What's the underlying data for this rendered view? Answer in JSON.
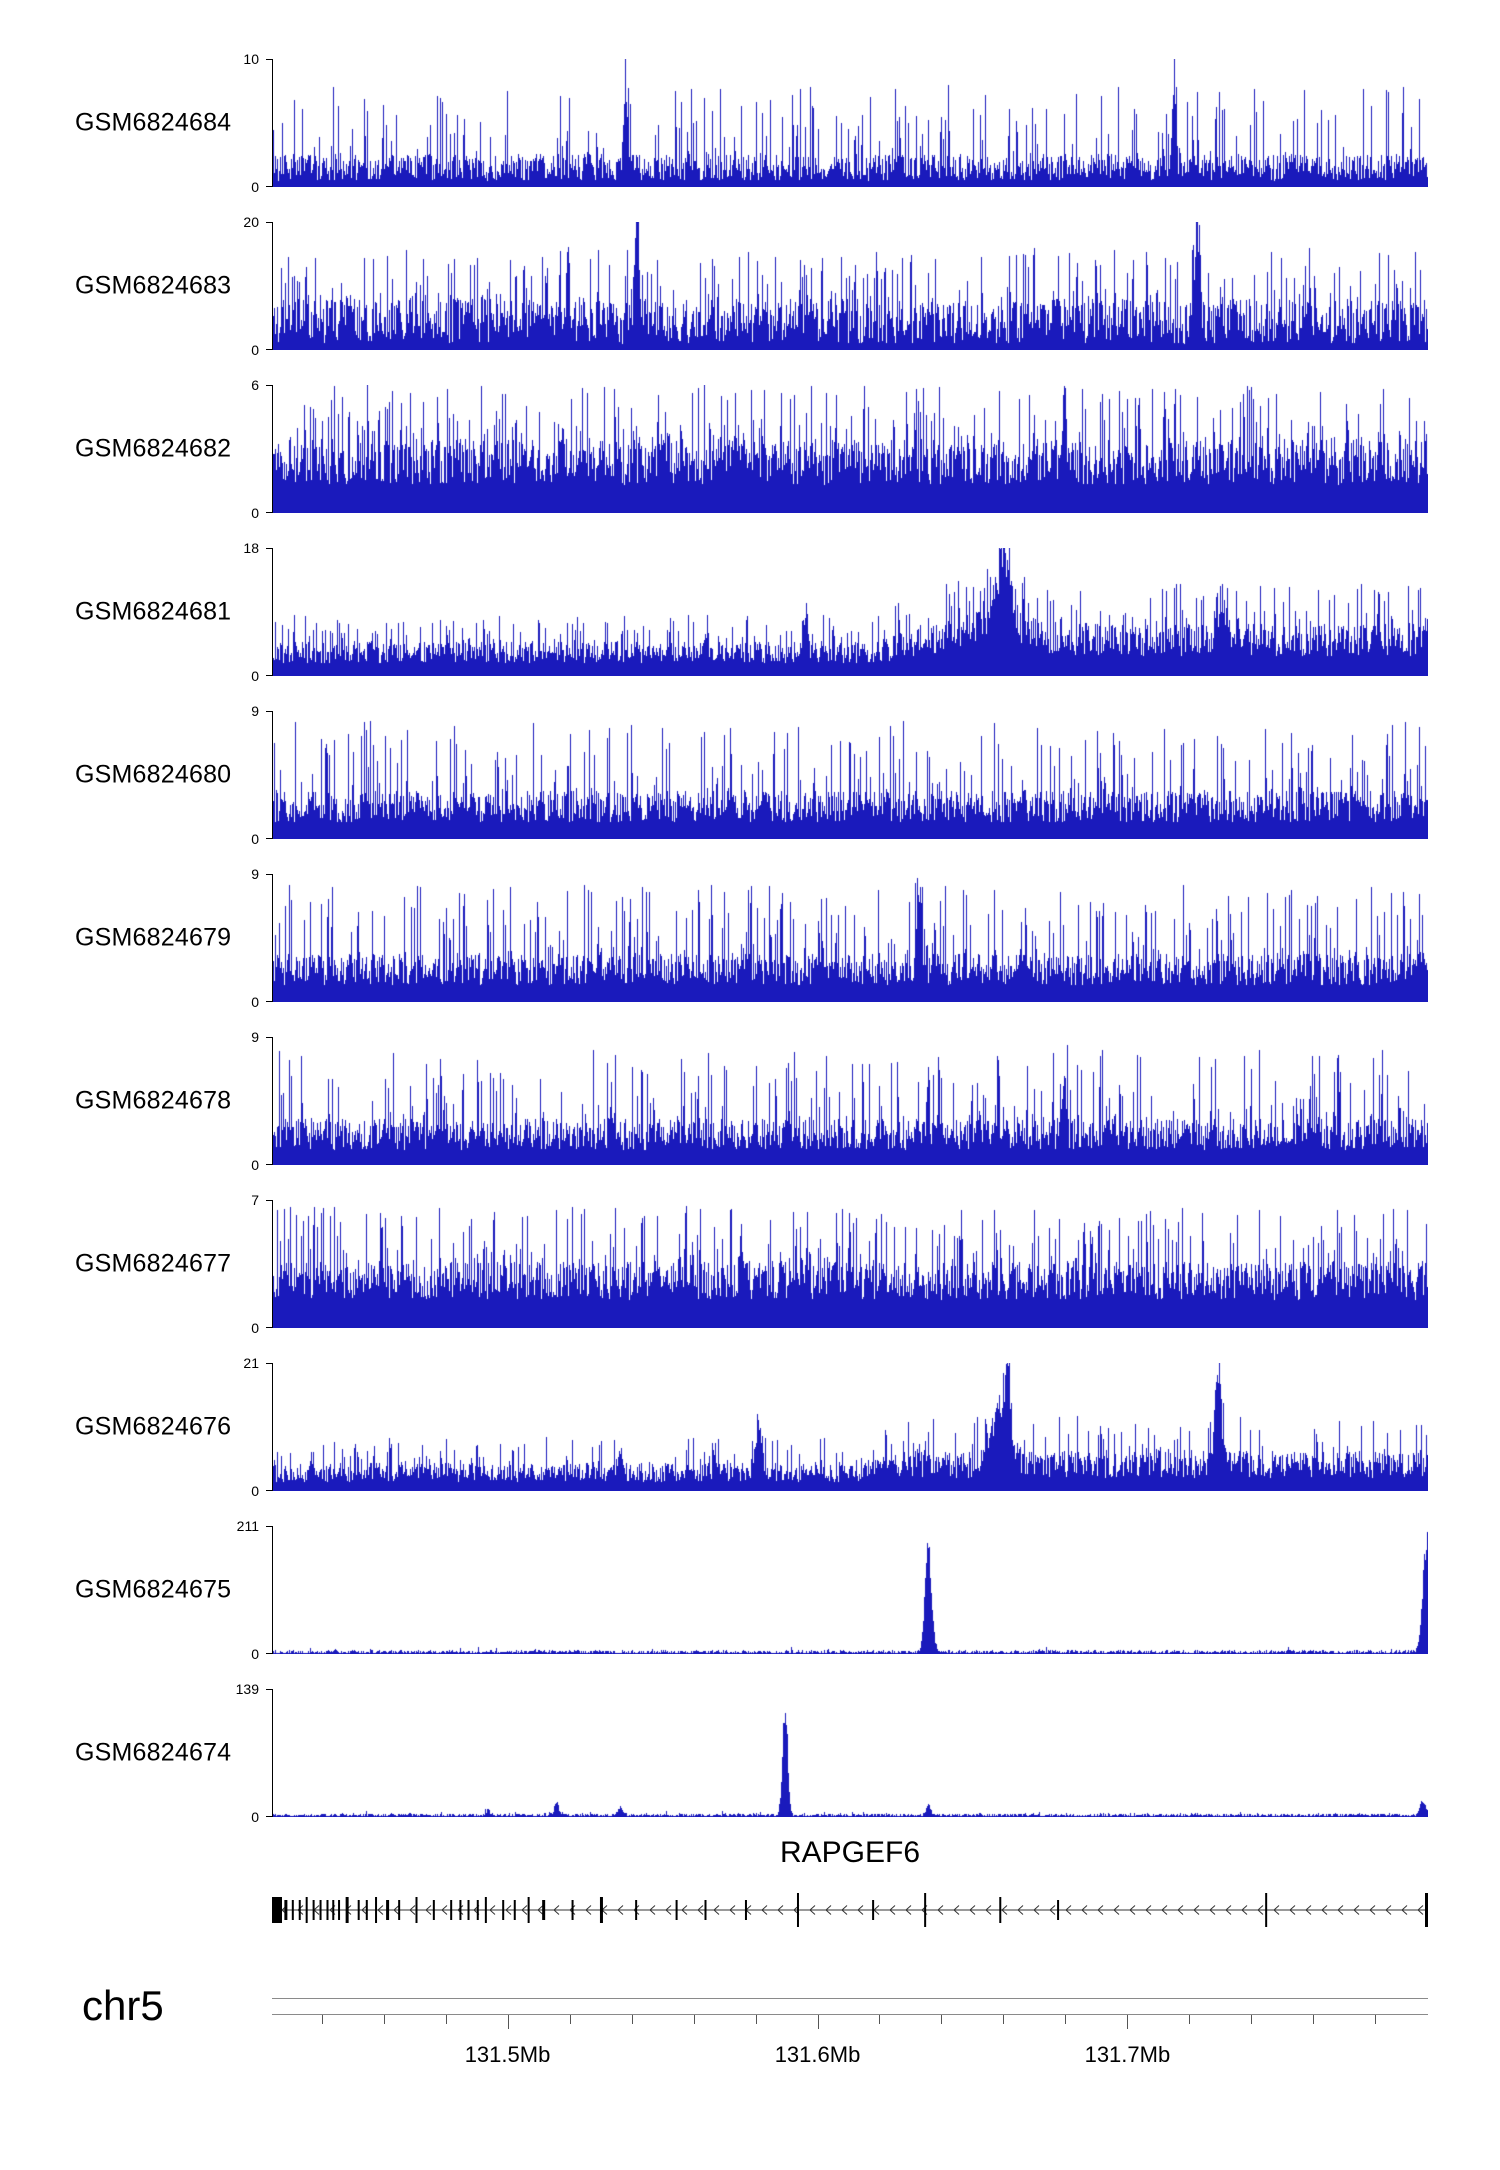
{
  "figure": {
    "background": "#ffffff",
    "signal_color": "#1a1abc",
    "chrom_label": "chr5",
    "gene_label": "RAPGEF6"
  },
  "chart_data": {
    "type": "area",
    "title": "",
    "description": "Genome-browser read-coverage tracks for 11 GEO samples over the RAPGEF6 locus on chr5",
    "region": {
      "chromosome": "chr5",
      "start_mb": 131.424,
      "end_mb": 131.797,
      "unit": "Mb"
    },
    "x_axis": {
      "major_ticks_mb": [
        131.5,
        131.6,
        131.7
      ],
      "major_tick_labels": [
        "131.5Mb",
        "131.6Mb",
        "131.7Mb"
      ],
      "minor_tick_interval_mb": 0.02,
      "grid": false
    },
    "legend": null,
    "tracks": [
      {
        "id": "GSM6824684",
        "ylim": [
          0,
          10
        ],
        "ymax_label": "10",
        "yzero_label": "0",
        "render": {
          "seed": 684,
          "base": [
            0.05,
            0.26
          ],
          "spike_p": 0.22,
          "spike_max": 0.8,
          "envelope": [
            [
              0,
              1
            ],
            [
              1,
              1
            ]
          ],
          "peaks": [
            {
              "c": 0.305,
              "w": 0.0015,
              "a": 0.7
            },
            {
              "c": 0.78,
              "w": 0.0015,
              "a": 0.8
            }
          ]
        }
      },
      {
        "id": "GSM6824683",
        "ylim": [
          0,
          20
        ],
        "ymax_label": "20",
        "yzero_label": "0",
        "render": {
          "seed": 683,
          "base": [
            0.05,
            0.4
          ],
          "spike_p": 0.3,
          "spike_max": 0.8,
          "envelope": [
            [
              0,
              1
            ],
            [
              1,
              1
            ]
          ],
          "peaks": [
            {
              "c": 0.315,
              "w": 0.002,
              "a": 0.8
            },
            {
              "c": 0.8,
              "w": 0.002,
              "a": 0.85
            },
            {
              "c": 0.255,
              "w": 0.0015,
              "a": 0.5
            }
          ]
        }
      },
      {
        "id": "GSM6824682",
        "ylim": [
          0,
          6
        ],
        "ymax_label": "6",
        "yzero_label": "0",
        "render": {
          "seed": 682,
          "base": [
            0.22,
            0.58
          ],
          "spike_p": 0.32,
          "spike_max": 1.0,
          "envelope": [
            [
              0,
              1
            ],
            [
              1,
              1
            ]
          ],
          "peaks": [
            {
              "c": 0.685,
              "w": 0.0015,
              "a": 0.5
            }
          ]
        }
      },
      {
        "id": "GSM6824681",
        "ylim": [
          0,
          18
        ],
        "ymax_label": "18",
        "yzero_label": "0",
        "render": {
          "seed": 681,
          "base": [
            0.1,
            0.27
          ],
          "spike_p": 0.28,
          "spike_max": 0.48,
          "envelope": [
            [
              0,
              1
            ],
            [
              0.52,
              1
            ],
            [
              0.58,
              1.55
            ],
            [
              1,
              1.5
            ]
          ],
          "peaks": [
            {
              "c": 0.632,
              "w": 0.006,
              "a": 0.45
            },
            {
              "c": 0.628,
              "w": 0.02,
              "a": 0.18
            },
            {
              "c": 0.82,
              "w": 0.004,
              "a": 0.32
            },
            {
              "c": 0.46,
              "w": 0.002,
              "a": 0.32
            }
          ]
        }
      },
      {
        "id": "GSM6824680",
        "ylim": [
          0,
          9
        ],
        "ymax_label": "9",
        "yzero_label": "0",
        "render": {
          "seed": 680,
          "base": [
            0.13,
            0.38
          ],
          "spike_p": 0.27,
          "spike_max": 0.92,
          "envelope": [
            [
              0,
              1
            ],
            [
              1,
              1
            ]
          ],
          "peaks": []
        }
      },
      {
        "id": "GSM6824679",
        "ylim": [
          0,
          9
        ],
        "ymax_label": "9",
        "yzero_label": "0",
        "render": {
          "seed": 679,
          "base": [
            0.13,
            0.38
          ],
          "spike_p": 0.26,
          "spike_max": 0.92,
          "envelope": [
            [
              0,
              1
            ],
            [
              1,
              1
            ]
          ],
          "peaks": [
            {
              "c": 0.56,
              "w": 0.0015,
              "a": 0.55
            }
          ]
        }
      },
      {
        "id": "GSM6824678",
        "ylim": [
          0,
          9
        ],
        "ymax_label": "9",
        "yzero_label": "0",
        "render": {
          "seed": 678,
          "base": [
            0.12,
            0.36
          ],
          "spike_p": 0.26,
          "spike_max": 0.9,
          "envelope": [
            [
              0,
              1
            ],
            [
              1,
              1
            ]
          ],
          "peaks": [
            {
              "c": 0.685,
              "w": 0.0012,
              "a": 0.6
            }
          ]
        }
      },
      {
        "id": "GSM6824677",
        "ylim": [
          0,
          7
        ],
        "ymax_label": "7",
        "yzero_label": "0",
        "render": {
          "seed": 677,
          "base": [
            0.22,
            0.52
          ],
          "spike_p": 0.3,
          "spike_max": 0.95,
          "envelope": [
            [
              0,
              1
            ],
            [
              1,
              1
            ]
          ],
          "peaks": [
            {
              "c": 0.405,
              "w": 0.0012,
              "a": 0.55
            }
          ]
        }
      },
      {
        "id": "GSM6824676",
        "ylim": [
          0,
          21
        ],
        "ymax_label": "21",
        "yzero_label": "0",
        "render": {
          "seed": 676,
          "base": [
            0.07,
            0.22
          ],
          "spike_p": 0.22,
          "spike_max": 0.42,
          "envelope": [
            [
              0,
              1
            ],
            [
              0.5,
              1
            ],
            [
              0.56,
              1.45
            ],
            [
              1,
              1.4
            ]
          ],
          "peaks": [
            {
              "c": 0.63,
              "w": 0.008,
              "a": 0.5
            },
            {
              "c": 0.636,
              "w": 0.002,
              "a": 0.6
            },
            {
              "c": 0.818,
              "w": 0.0025,
              "a": 0.85
            },
            {
              "c": 0.42,
              "w": 0.003,
              "a": 0.3
            },
            {
              "c": 0.3,
              "w": 0.002,
              "a": 0.22
            }
          ]
        }
      },
      {
        "id": "GSM6824675",
        "ylim": [
          0,
          211
        ],
        "ymax_label": "211",
        "yzero_label": "0",
        "render": {
          "seed": 675,
          "base": [
            0.004,
            0.03
          ],
          "spike_p": 0.03,
          "spike_max": 0.06,
          "envelope": [
            [
              0,
              1
            ],
            [
              1,
              1
            ]
          ],
          "peaks": [
            {
              "c": 0.567,
              "w": 0.0028,
              "a": 0.92
            },
            {
              "c": 0.999,
              "w": 0.0035,
              "a": 1.0
            }
          ]
        }
      },
      {
        "id": "GSM6824674",
        "ylim": [
          0,
          139
        ],
        "ymax_label": "139",
        "yzero_label": "0",
        "render": {
          "seed": 674,
          "base": [
            0.004,
            0.028
          ],
          "spike_p": 0.03,
          "spike_max": 0.05,
          "envelope": [
            [
              0,
              1
            ],
            [
              1,
              1
            ]
          ],
          "peaks": [
            {
              "c": 0.443,
              "w": 0.0022,
              "a": 0.98
            },
            {
              "c": 0.245,
              "w": 0.0018,
              "a": 0.11
            },
            {
              "c": 0.186,
              "w": 0.0015,
              "a": 0.06
            },
            {
              "c": 0.3,
              "w": 0.0018,
              "a": 0.08
            },
            {
              "c": 0.567,
              "w": 0.0018,
              "a": 0.09
            },
            {
              "c": 0.995,
              "w": 0.0025,
              "a": 0.12
            }
          ]
        }
      }
    ],
    "gene_track": {
      "gene": "RAPGEF6",
      "strand": "-",
      "exons": [
        {
          "p": 0.0,
          "w": 10,
          "h": 26
        },
        {
          "p": 0.012,
          "w": 3,
          "h": 20
        },
        {
          "p": 0.018,
          "w": 2,
          "h": 20
        },
        {
          "p": 0.024,
          "w": 2,
          "h": 20
        },
        {
          "p": 0.03,
          "w": 2,
          "h": 26
        },
        {
          "p": 0.036,
          "w": 2,
          "h": 20
        },
        {
          "p": 0.042,
          "w": 2,
          "h": 20
        },
        {
          "p": 0.048,
          "w": 2,
          "h": 20
        },
        {
          "p": 0.053,
          "w": 2,
          "h": 20
        },
        {
          "p": 0.058,
          "w": 2,
          "h": 20
        },
        {
          "p": 0.065,
          "w": 3,
          "h": 26
        },
        {
          "p": 0.075,
          "w": 2,
          "h": 20
        },
        {
          "p": 0.082,
          "w": 2,
          "h": 20
        },
        {
          "p": 0.09,
          "w": 2,
          "h": 26
        },
        {
          "p": 0.1,
          "w": 3,
          "h": 20
        },
        {
          "p": 0.11,
          "w": 2,
          "h": 20
        },
        {
          "p": 0.125,
          "w": 2,
          "h": 26
        },
        {
          "p": 0.14,
          "w": 2,
          "h": 20
        },
        {
          "p": 0.155,
          "w": 2,
          "h": 20
        },
        {
          "p": 0.163,
          "w": 2,
          "h": 20
        },
        {
          "p": 0.17,
          "w": 2,
          "h": 20
        },
        {
          "p": 0.178,
          "w": 2,
          "h": 20
        },
        {
          "p": 0.185,
          "w": 2,
          "h": 26
        },
        {
          "p": 0.2,
          "w": 2,
          "h": 20
        },
        {
          "p": 0.21,
          "w": 2,
          "h": 20
        },
        {
          "p": 0.222,
          "w": 2,
          "h": 26
        },
        {
          "p": 0.235,
          "w": 3,
          "h": 20
        },
        {
          "p": 0.26,
          "w": 2,
          "h": 20
        },
        {
          "p": 0.285,
          "w": 3,
          "h": 26
        },
        {
          "p": 0.315,
          "w": 2,
          "h": 20
        },
        {
          "p": 0.35,
          "w": 2,
          "h": 20
        },
        {
          "p": 0.375,
          "w": 2,
          "h": 20
        },
        {
          "p": 0.41,
          "w": 2,
          "h": 20
        },
        {
          "p": 0.455,
          "w": 2,
          "h": 34
        },
        {
          "p": 0.52,
          "w": 2,
          "h": 20
        },
        {
          "p": 0.565,
          "w": 2,
          "h": 34
        },
        {
          "p": 0.63,
          "w": 2,
          "h": 26
        },
        {
          "p": 0.68,
          "w": 2,
          "h": 20
        },
        {
          "p": 0.86,
          "w": 2,
          "h": 34
        },
        {
          "p": 0.999,
          "w": 3,
          "h": 34
        }
      ]
    }
  }
}
